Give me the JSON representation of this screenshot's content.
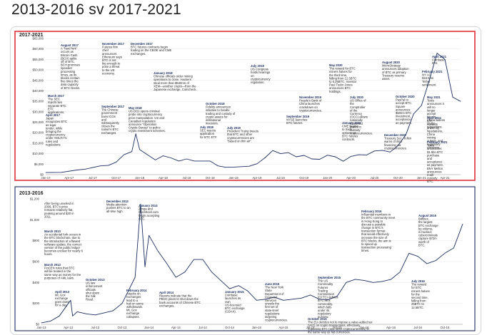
{
  "page": {
    "heading": "2013-2016 sv 2017-2021"
  },
  "chart_data": [
    {
      "type": "line",
      "title": "2017-2021",
      "accent": "#e0303a",
      "line_color": "#1b2f63",
      "text_color": "#1b2f63",
      "ylim": [
        0,
        65000
      ],
      "y_ticks": [
        "$0",
        "$5,000",
        "$10,000",
        "$15,000",
        "$20,000",
        "$25,000",
        "$30,000",
        "$35,000",
        "$40,000",
        "$45,000",
        "$50,000",
        "$55,000",
        "$60,000",
        "$65,000"
      ],
      "x_ticks": [
        "Jan-17",
        "Apr-17",
        "Jul-17",
        "Oct-17",
        "Jan-18",
        "Apr-18",
        "Jul-18",
        "Oct-18",
        "Jan-19",
        "Apr-19",
        "Jul-19",
        "Oct-19",
        "Jan-20",
        "Apr-20",
        "Jul-20",
        "Oct-20",
        "Jan-21",
        "Apr-21"
      ],
      "x": [
        "2017-01",
        "2017-03",
        "2017-05",
        "2017-06",
        "2017-08",
        "2017-09",
        "2017-10",
        "2017-11",
        "2017-12-01",
        "2017-12-17",
        "2018-01",
        "2018-02",
        "2018-03",
        "2018-04",
        "2018-05",
        "2018-06",
        "2018-07",
        "2018-08",
        "2018-09",
        "2018-10",
        "2018-11",
        "2018-12",
        "2019-01",
        "2019-02",
        "2019-03",
        "2019-04",
        "2019-05",
        "2019-06",
        "2019-07",
        "2019-08",
        "2019-09",
        "2019-10",
        "2019-11",
        "2019-12",
        "2020-01",
        "2020-02",
        "2020-03",
        "2020-04",
        "2020-05",
        "2020-06",
        "2020-07",
        "2020-08",
        "2020-09",
        "2020-10",
        "2020-11",
        "2020-12",
        "2021-01",
        "2021-02",
        "2021-03",
        "2021-04",
        "2021-05",
        "2021-06"
      ],
      "values": [
        1000,
        1100,
        2200,
        2600,
        4200,
        4400,
        6000,
        9500,
        11000,
        19500,
        12000,
        9500,
        7000,
        9000,
        8000,
        6500,
        7500,
        6500,
        6500,
        6500,
        4200,
        3500,
        3600,
        3800,
        4000,
        5200,
        8000,
        11500,
        10000,
        10500,
        8500,
        9200,
        7500,
        7300,
        9300,
        8500,
        6400,
        8700,
        9500,
        9400,
        11300,
        11600,
        10800,
        13800,
        19000,
        29000,
        33000,
        45000,
        58000,
        55000,
        37000,
        35000
      ],
      "annotations": [
        {
          "date": "August 2017",
          "text": "A \"hard fork\" occurs as Bitcoin Cash (BCH) splits off of BTC. BCH promises speedier processing times, as its blocks contain five times the data capacity of BTC blocks."
        },
        {
          "date": "November 2017",
          "text": "Futures firm chief announces Ethereum says BTC is not big enough to pose a threat to the US economy."
        },
        {
          "date": "December 2017",
          "text": "BTC futures contracts begin trading on the CBOE and CME exchanges."
        },
        {
          "date": "March 2017",
          "text": "The SEC rejects two separate BTC ETF applications."
        },
        {
          "date": "September 2017",
          "text": "The Chinese government bans ICOs and subsequently closes the nation's BTC exchanges."
        },
        {
          "date": "April 2017",
          "text": "Japan recognizes BTC as legal tender, while bringing the cryptocurrency under AML/KYC rules and regulations."
        },
        {
          "date": "January 2018",
          "text": "Chinese officials order mining operations to close. Hackers steal more than $530mn of XEM—another crypto—from the Japanese exchange, Coincheck."
        },
        {
          "date": "May 2018",
          "text": "US DOJ opens criminal probe into cryptocurrency price manipulation. US and Canadian regulators announce \"Operation Crypto-Sweep\" to police crypto investment schemes."
        },
        {
          "date": "July 2018",
          "text": "SEC rejects application for BTC ETF."
        },
        {
          "date": "October 2018",
          "text": "Fidelity announces initiative to handle trading and custody of crypto assets for institutional investors."
        },
        {
          "date": "July 2019",
          "text": "President Trump tweets that BTC and other cryptocurrencies are \"based on thin air\"."
        },
        {
          "date": "July 2019",
          "text": "US Congress holds hearings on cryptocurrency regulation."
        },
        {
          "date": "November 2019",
          "text": "People's Bank of China launches crackdown on cryptocurrencies."
        },
        {
          "date": "September 2019",
          "text": "NYSE launches BTC futures."
        },
        {
          "date": "May 2020",
          "text": "The reward for BTC miners halves for the third time, falling from 12.5BTC to 6.25BTC. Investor Paul Tudor Jones announces BTC holdings."
        },
        {
          "date": "January 2020",
          "text": "CME begins to trade options on BTC futures contracts."
        },
        {
          "date": "July 2020",
          "text": "US Office of the Comptroller of the Currency (OCC) allows nationally chartered banks to custody cryptocurrencies."
        },
        {
          "date": "August 2020",
          "text": "MicroStrategy announces adoption of BTC as primary Treasury reserve asset."
        },
        {
          "date": "October 2020",
          "text": "PayPal to accept BTC. Square announces $50mn BTC investment, acceptance as payment."
        },
        {
          "date": "February 2021",
          "text": "NY AG $18.5mn Tether settlement."
        },
        {
          "date": "December 2020",
          "text": "Treasury Sec. Yellen warns of illicit financing via cryptocurrencies."
        },
        {
          "date": "April 2021",
          "text": "Coinbase IPO."
        },
        {
          "date": "May 2021",
          "text": "Tesla announces it will no longer accept bitcoin. China widens crypto regulations."
        },
        {
          "date": "April 2021",
          "text": "BTC corrects driven by liquidations, China mining outage, and regulatory concerns."
        },
        {
          "date": "February 2021",
          "text": "Tesla announces $1.5bn BTC purchase and acceptance as payment. BNY Mellon announces it will custody BTC."
        }
      ]
    },
    {
      "type": "line",
      "title": "2013-2016",
      "accent": "#1b2f63",
      "line_color": "#1b2f63",
      "text_color": "#1b2f63",
      "ylim": [
        0,
        1200
      ],
      "y_ticks": [
        "$0",
        "$200",
        "$400",
        "$600",
        "$800",
        "$1,000",
        "$1,200"
      ],
      "x_ticks": [
        "Jan-13",
        "Apr-13",
        "Jul-13",
        "Oct-13",
        "Jan-14",
        "Apr-14",
        "Jul-14",
        "Oct-14",
        "Jan-15",
        "Apr-15",
        "Jul-15",
        "Oct-15",
        "Jan-16",
        "Apr-16",
        "Jul-16",
        "Oct-16"
      ],
      "x": [
        "2013-01",
        "2013-02",
        "2013-03",
        "2013-04-09",
        "2013-04-16",
        "2013-05",
        "2013-06",
        "2013-07",
        "2013-08",
        "2013-09",
        "2013-10",
        "2013-11-15",
        "2013-12-03",
        "2013-12-18",
        "2014-01",
        "2014-02",
        "2014-03",
        "2014-04",
        "2014-05",
        "2014-06",
        "2014-07",
        "2014-08",
        "2014-09",
        "2014-10",
        "2014-11",
        "2014-12",
        "2015-01",
        "2015-02",
        "2015-03",
        "2015-04",
        "2015-05",
        "2015-06",
        "2015-07",
        "2015-08",
        "2015-09",
        "2015-10",
        "2015-11",
        "2015-12",
        "2016-01",
        "2016-02",
        "2016-03",
        "2016-04",
        "2016-05",
        "2016-06",
        "2016-07",
        "2016-08",
        "2016-09",
        "2016-10",
        "2016-11",
        "2016-12"
      ],
      "values": [
        14,
        30,
        80,
        230,
        80,
        120,
        100,
        90,
        110,
        130,
        200,
        450,
        1150,
        550,
        850,
        700,
        580,
        450,
        500,
        620,
        620,
        500,
        420,
        340,
        370,
        320,
        230,
        240,
        260,
        230,
        240,
        250,
        280,
        240,
        235,
        270,
        400,
        430,
        420,
        400,
        410,
        430,
        500,
        680,
        650,
        580,
        610,
        680,
        730,
        960
      ],
      "annotations": [
        {
          "date": "",
          "text": "After being unveiled in 2009, BTC's price remains relatively flat, peaking around $30 in 2011."
        },
        {
          "date": "December 2013",
          "text": "Media attention pushes BTC to an all-time high."
        },
        {
          "date": "January 2014",
          "text": "Zynga and Overstock.com begin accepting BTC."
        },
        {
          "date": "March 2013",
          "text": "An accidental fork occurs in the BTC blockchain, due to the introduction of a flawed software update; the correct version of the public ledger becomes unclear for nearly 6 hours."
        },
        {
          "date": "March 2013",
          "text": "FinCEN rules that BTC will be treated in the same way as money for the purposes of AML laws."
        },
        {
          "date": "October 2013",
          "text": "US law enforcement officials shut down the Silk Road."
        },
        {
          "date": "April 2013",
          "text": "Mt. Gox exchange goes down for a day."
        },
        {
          "date": "February 2014",
          "text": "Attacks on exchanges lead to a halt on some withdrawals. Mt. Gox exchange collapses."
        },
        {
          "date": "April 2014",
          "text": "Reports indicate that the PBOC plans to shut down the bank accounts of Chinese BTC exchanges."
        },
        {
          "date": "January 2015",
          "text": "Coinbase launches its own US-licensed BTC exchange (GDAX)."
        },
        {
          "date": "June 2015",
          "text": "The New York State Department of Financial Services unveils the first set of state-level regulations targeting cryptocurrencies."
        },
        {
          "date": "September 2015",
          "text": "The US Commodity Futures Trading Commission (CFTC) defines BTC as a commodity, which falls under its regulatory purview."
        },
        {
          "date": "February 2016",
          "text": "Influential members in the BTC community meet in Hong Kong to discuss a possible change in BTC's transaction format that would effectively increase the size of BTC blocks, the aim is to speed up transaction processing times."
        },
        {
          "date": "August 2016",
          "text": "Bitfinex, the largest BTC exchange by volume, is hacked; cybercriminals capture $72m worth of BTC."
        },
        {
          "date": "July 2016",
          "text": "The reward for BTC miners halves for the second time, falling from 25BTC to 12.5BTC."
        },
        {
          "date": "October 2015",
          "text": "The EU decides not to impose a value-added tax (VAT) on crypto transactions, effectively regulating BTC (and other cryptocurrencies) in the same way as fiat currencies."
        }
      ]
    }
  ]
}
